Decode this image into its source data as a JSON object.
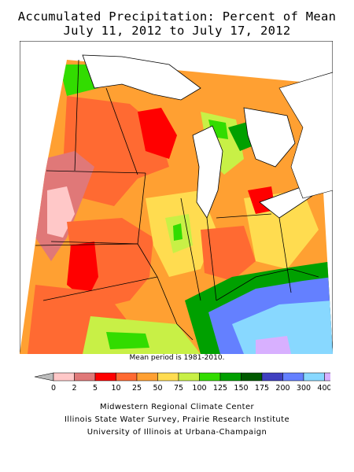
{
  "title_line1": "Accumulated Precipitation: Percent of Mean",
  "title_line2": "July 11, 2012 to July 17, 2012",
  "period_note": "Mean period is 1981-2010.",
  "legend": {
    "breaks": [
      "0",
      "2",
      "5",
      "10",
      "25",
      "50",
      "75",
      "100",
      "125",
      "150",
      "175",
      "200",
      "300",
      "400"
    ],
    "colors": [
      "#ffc8c8",
      "#e07878",
      "#ff0000",
      "#ff6a32",
      "#ffa032",
      "#ffdc50",
      "#c8f046",
      "#32dc00",
      "#00a000",
      "#005a00",
      "#4040c0",
      "#6480ff",
      "#88d8ff",
      "#d8b0ff"
    ],
    "underflow_color": "#bcbcbc"
  },
  "credits": [
    "Midwestern Regional Climate Center",
    "Illinois State Water Survey, Prairie Research Institute",
    "University of Illinois at Urbana-Champaign"
  ],
  "regions_shown": [
    "Minnesota",
    "Wisconsin",
    "Michigan",
    "Iowa",
    "Illinois",
    "Indiana",
    "Ohio",
    "Missouri",
    "Kentucky"
  ]
}
